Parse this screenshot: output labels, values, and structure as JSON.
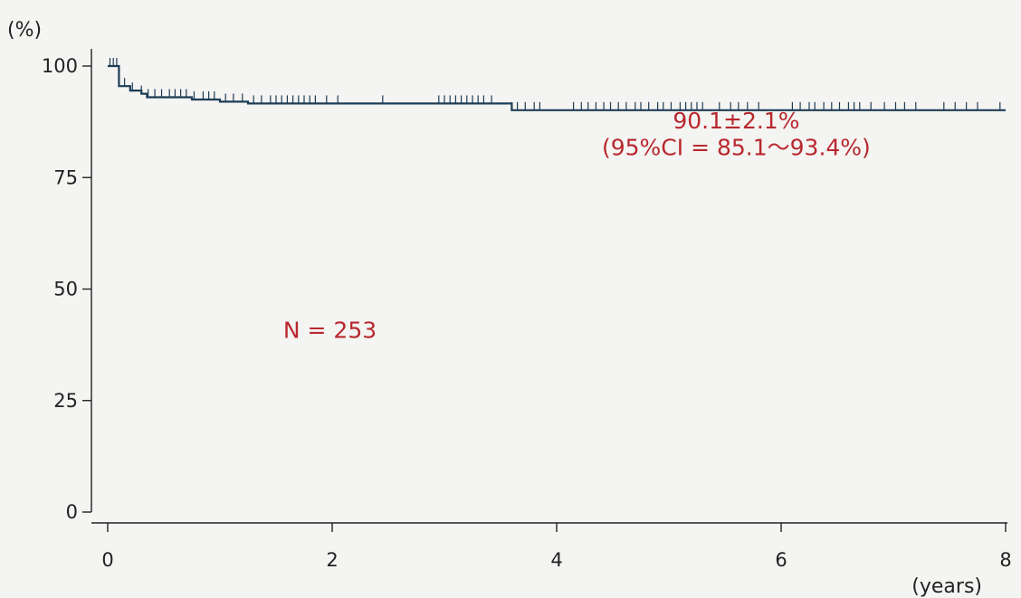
{
  "chart_data": {
    "type": "line",
    "title": "",
    "xlabel": "(years)",
    "ylabel": "(%)",
    "xlim": [
      0,
      8
    ],
    "ylim": [
      0,
      100
    ],
    "xticks": [
      "0",
      "2",
      "4",
      "6",
      "8"
    ],
    "yticks": [
      "0",
      "25",
      "50",
      "75",
      "100"
    ],
    "grid": false,
    "series": [
      {
        "x": [
          0,
          0.1,
          0.1,
          0.2,
          0.2,
          0.3,
          0.3,
          0.35,
          0.35,
          0.75,
          0.75,
          1.0,
          1.0,
          1.25,
          1.25,
          3.6,
          3.6,
          8.0
        ],
        "y": [
          100,
          100,
          95.5,
          95.5,
          94.5,
          94.5,
          93.8,
          93.8,
          93.0,
          93.0,
          92.5,
          92.5,
          92.0,
          92.0,
          91.6,
          91.6,
          90.1,
          90.1
        ],
        "censor_times": [
          0.02,
          0.05,
          0.08,
          0.15,
          0.22,
          0.3,
          0.36,
          0.42,
          0.48,
          0.55,
          0.6,
          0.65,
          0.7,
          0.77,
          0.85,
          0.9,
          0.95,
          1.05,
          1.12,
          1.2,
          1.3,
          1.37,
          1.45,
          1.5,
          1.55,
          1.6,
          1.65,
          1.7,
          1.75,
          1.8,
          1.85,
          1.95,
          2.05,
          2.45,
          2.95,
          3.0,
          3.05,
          3.1,
          3.15,
          3.2,
          3.25,
          3.3,
          3.35,
          3.42,
          3.6,
          3.65,
          3.72,
          3.8,
          3.85,
          4.15,
          4.22,
          4.28,
          4.35,
          4.42,
          4.48,
          4.55,
          4.62,
          4.7,
          4.75,
          4.82,
          4.9,
          4.95,
          5.02,
          5.1,
          5.15,
          5.2,
          5.25,
          5.3,
          5.45,
          5.55,
          5.62,
          5.7,
          5.8,
          6.1,
          6.17,
          6.25,
          6.3,
          6.38,
          6.45,
          6.52,
          6.6,
          6.65,
          6.7,
          6.8,
          6.92,
          7.02,
          7.1,
          7.2,
          7.45,
          7.55,
          7.65,
          7.75,
          7.95
        ]
      }
    ],
    "annotations": [
      {
        "text": "90.1±2.1%",
        "x": 5.6,
        "y": 86
      },
      {
        "text": "(95%CI = 85.1～93.4%)",
        "x": 5.6,
        "y": 80
      },
      {
        "text": "N = 253",
        "x": 1.98,
        "y": 39
      }
    ],
    "colors": {
      "line": "#1d3d55",
      "annotation": "#b8282e",
      "axis": "#222222"
    }
  }
}
